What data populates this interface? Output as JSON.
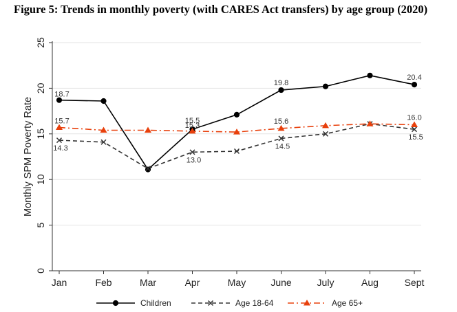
{
  "chart_data": {
    "type": "line",
    "title": "Figure 5: Trends in monthly poverty (with CARES Act transfers) by age group (2020)",
    "ylabel": "Monthly SPM Poverty Rate",
    "xlabel": "",
    "ylim": [
      0,
      25
    ],
    "yticks": [
      "0",
      "5",
      "10",
      "15",
      "20",
      "25"
    ],
    "categories": [
      "Jan",
      "Feb",
      "Mar",
      "Apr",
      "May",
      "June",
      "July",
      "Aug",
      "Sept"
    ],
    "grid": true,
    "legend_position": "bottom",
    "series": [
      {
        "name": "Children",
        "color": "#000000",
        "marker": "circle",
        "dash": "solid",
        "values": [
          18.7,
          18.6,
          11.1,
          15.5,
          17.1,
          19.8,
          20.2,
          21.4,
          20.4
        ],
        "labels": [
          "18.7",
          "",
          "",
          "15.5",
          "",
          "19.8",
          "",
          "",
          "20.4"
        ]
      },
      {
        "name": "Age 18-64",
        "color": "#333333",
        "marker": "x",
        "dash": "dash",
        "values": [
          14.3,
          14.1,
          11.2,
          13.0,
          13.1,
          14.5,
          15.0,
          16.1,
          15.5
        ],
        "labels": [
          "14.3",
          "",
          "",
          "13.0",
          "",
          "14.5",
          "",
          "",
          "15.5"
        ]
      },
      {
        "name": "Age 65+",
        "color": "#e8400c",
        "marker": "triangle",
        "dash": "dashdot",
        "values": [
          15.7,
          15.4,
          15.4,
          15.3,
          15.2,
          15.6,
          15.9,
          16.1,
          16.0
        ],
        "labels": [
          "15.7",
          "",
          "",
          "15.3",
          "",
          "15.6",
          "",
          "",
          "16.0"
        ]
      }
    ]
  }
}
